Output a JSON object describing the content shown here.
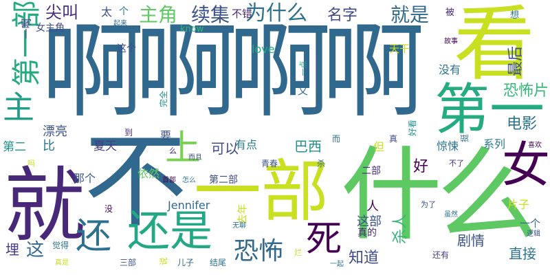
{
  "words": [
    {
      "text": "啊啊啊啊",
      "color": "#31688e"
    },
    {
      "text": "看",
      "color": "#c8e020"
    },
    {
      "text": "第一",
      "color": "#25ab82"
    },
    {
      "text": "就",
      "color": "#482878"
    },
    {
      "text": "不",
      "color": "#31688e"
    },
    {
      "text": "一部",
      "color": "#c8e020"
    },
    {
      "text": "什么",
      "color": "#5ec962"
    },
    {
      "text": "女",
      "color": "#440154"
    },
    {
      "text": "上",
      "color": "#7ad151"
    },
    {
      "text": "还是",
      "color": "#22a884"
    },
    {
      "text": "还",
      "color": "#2c728e"
    },
    {
      "text": "死",
      "color": "#440154"
    },
    {
      "text": "主",
      "color": "#1f9e89"
    },
    {
      "text": "第一部",
      "color": "#25ab82"
    },
    {
      "text": "主角",
      "color": "#5ec962"
    },
    {
      "text": "续集",
      "color": "#3b528b"
    },
    {
      "text": "为什么",
      "color": "#2c728e"
    },
    {
      "text": "就是",
      "color": "#31688e"
    },
    {
      "text": "名字",
      "color": "#3e4a89"
    },
    {
      "text": "尖叫",
      "color": "#472d7b"
    },
    {
      "text": "不错",
      "color": "#482878"
    },
    {
      "text": "太",
      "color": "#3b528b"
    },
    {
      "text": "个",
      "color": "#2a788e"
    },
    {
      "text": "起来",
      "color": "#31688e"
    },
    {
      "text": "know",
      "color": "#35b779"
    },
    {
      "text": "被",
      "color": "#482878"
    },
    {
      "text": "想",
      "color": "#2c728e"
    },
    {
      "text": "一啊",
      "color": "#433e85"
    },
    {
      "text": "女主角",
      "color": "#3e4a89"
    },
    {
      "text": "这个",
      "color": "#3e4a89"
    },
    {
      "text": "love",
      "color": "#25ab82"
    },
    {
      "text": "天干",
      "color": "#c8e020"
    },
    {
      "text": "故事",
      "color": "#440154"
    },
    {
      "text": "最后",
      "color": "#3b528b"
    },
    {
      "text": "没有",
      "color": "#2c728e"
    },
    {
      "text": "恐怖片",
      "color": "#35b779"
    },
    {
      "text": "恐怖",
      "color": "#31688e"
    },
    {
      "text": "一点",
      "color": "#22a884"
    },
    {
      "text": "又",
      "color": "#31688e"
    },
    {
      "text": "电影",
      "color": "#2c728e"
    },
    {
      "text": "漂亮",
      "color": "#3b528b"
    },
    {
      "text": "第二",
      "color": "#21918c"
    },
    {
      "text": "比",
      "color": "#2c728e"
    },
    {
      "text": "夏天",
      "color": "#433e85"
    },
    {
      "text": "要",
      "color": "#3b528b"
    },
    {
      "text": "可以",
      "color": "#3e4a89"
    },
    {
      "text": "好",
      "color": "#440154"
    },
    {
      "text": "有点",
      "color": "#2a788e"
    },
    {
      "text": "巴西",
      "color": "#21918c"
    },
    {
      "text": "惊悚",
      "color": "#2c728e"
    },
    {
      "text": "系列",
      "color": "#2a788e"
    },
    {
      "text": "挺",
      "color": "#31688e"
    },
    {
      "text": "喜欢",
      "color": "#440154"
    },
    {
      "text": "好看",
      "color": "#21918c"
    },
    {
      "text": "真",
      "color": "#3e4a89"
    },
    {
      "text": "而",
      "color": "#2c728e"
    },
    {
      "text": "但",
      "color": "#c8e020"
    },
    {
      "text": "不了",
      "color": "#472d7b"
    },
    {
      "text": "完全",
      "color": "#21918c"
    },
    {
      "text": "杀",
      "color": "#31688e"
    },
    {
      "text": "到",
      "color": "#482878"
    },
    {
      "text": "依然",
      "color": "#5ec962"
    },
    {
      "text": "而且",
      "color": "#3b528b"
    },
    {
      "text": "首部",
      "color": "#440154"
    },
    {
      "text": "怎么",
      "color": "#2a788e"
    },
    {
      "text": "那个",
      "color": "#3b528b"
    },
    {
      "text": "第二部",
      "color": "#3e4a89"
    },
    {
      "text": "青春",
      "color": "#3b528b"
    },
    {
      "text": "二部",
      "color": "#472d7b"
    },
    {
      "text": "吗",
      "color": "#c8e020"
    },
    {
      "text": "么",
      "color": "#482878"
    },
    {
      "text": "Jennifer",
      "color": "#31688e"
    },
    {
      "text": "去年",
      "color": "#c8e020"
    },
    {
      "text": "人",
      "color": "#440154"
    },
    {
      "text": "为了",
      "color": "#3b528b"
    },
    {
      "text": "片子",
      "color": "#c8e020"
    },
    {
      "text": "虽然",
      "color": "#2c728e"
    },
    {
      "text": "一个",
      "color": "#31688e"
    },
    {
      "text": "逻辑",
      "color": "#3b528b"
    },
    {
      "text": "没",
      "color": "#440154"
    },
    {
      "text": "这部",
      "color": "#3b528b"
    },
    {
      "text": "无聊",
      "color": "#2c728e"
    },
    {
      "text": "真的",
      "color": "#482878"
    },
    {
      "text": "杀人",
      "color": "#35b779"
    },
    {
      "text": "剧情",
      "color": "#3b528b"
    },
    {
      "text": "直接",
      "color": "#2c728e"
    },
    {
      "text": "埋",
      "color": "#433e85"
    },
    {
      "text": "这",
      "color": "#31688e"
    },
    {
      "text": "觉得",
      "color": "#2c728e"
    },
    {
      "text": "真是",
      "color": "#c8e020"
    },
    {
      "text": "三部",
      "color": "#3b528b"
    },
    {
      "text": "说",
      "color": "#c8e020"
    },
    {
      "text": "儿子",
      "color": "#31688e"
    },
    {
      "text": "结尾",
      "color": "#2c728e"
    },
    {
      "text": "烂",
      "color": "#c8e020"
    },
    {
      "text": "一起",
      "color": "#2c728e"
    },
    {
      "text": "知道",
      "color": "#3e4a89"
    },
    {
      "text": "还有",
      "color": "#433e85"
    },
    {
      "text": "但",
      "color": "#31688e"
    }
  ]
}
